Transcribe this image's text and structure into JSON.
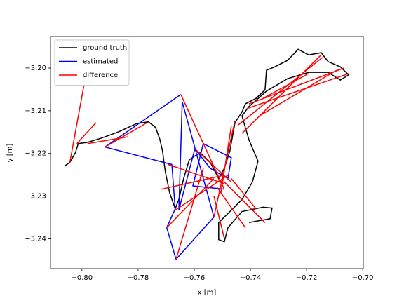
{
  "chart_data": {
    "type": "line",
    "xlabel": "x [m]",
    "ylabel": "y [m]",
    "xlim": [
      -0.8112,
      -0.6998
    ],
    "ylim": [
      -3.247,
      -3.1926
    ],
    "xticks": [
      {
        "value": -0.8,
        "label": "−0.80"
      },
      {
        "value": -0.78,
        "label": "−0.78"
      },
      {
        "value": -0.76,
        "label": "−0.76"
      },
      {
        "value": -0.74,
        "label": "−0.74"
      },
      {
        "value": -0.72,
        "label": "−0.72"
      },
      {
        "value": -0.7,
        "label": "−0.70"
      }
    ],
    "yticks": [
      {
        "value": -3.2,
        "label": "−3.20"
      },
      {
        "value": -3.21,
        "label": "−3.21"
      },
      {
        "value": -3.22,
        "label": "−3.22"
      },
      {
        "value": -3.23,
        "label": "−3.23"
      },
      {
        "value": -3.24,
        "label": "−3.24"
      }
    ],
    "legend": "upper left",
    "series": [
      {
        "name": "ground truth",
        "color": "#000000",
        "x": [
          -0.8063,
          -0.8043,
          -0.8023,
          -0.8013,
          -0.798,
          -0.793,
          -0.7868,
          -0.7805,
          -0.7763,
          -0.7738,
          -0.7723,
          -0.7713,
          -0.7703,
          -0.7688,
          -0.7668,
          -0.7655,
          -0.7638,
          -0.7618,
          -0.758,
          -0.7543,
          -0.7513,
          -0.7493,
          -0.7473,
          -0.7455,
          -0.743,
          -0.7418,
          -0.738,
          -0.7348,
          -0.7343,
          -0.7313,
          -0.7268,
          -0.723,
          -0.7193,
          -0.7148,
          -0.7123,
          -0.708,
          -0.705,
          -0.708,
          -0.7123,
          -0.7193,
          -0.7268,
          -0.7343,
          -0.7405,
          -0.743,
          -0.7405,
          -0.7373,
          -0.7393,
          -0.743,
          -0.7468,
          -0.7513,
          -0.7513,
          -0.7493,
          -0.748,
          -0.743,
          -0.7355,
          -0.7323,
          -0.733,
          -0.7405
        ],
        "y": [
          -3.223,
          -3.2221,
          -3.2198,
          -3.2177,
          -3.2174,
          -3.2164,
          -3.2149,
          -3.213,
          -3.2126,
          -3.2139,
          -3.2166,
          -3.2194,
          -3.2243,
          -3.2292,
          -3.233,
          -3.2308,
          -3.2259,
          -3.2215,
          -3.2198,
          -3.2221,
          -3.2259,
          -3.2235,
          -3.2194,
          -3.2128,
          -3.2103,
          -3.2084,
          -3.2071,
          -3.2051,
          -3.2005,
          -3.1997,
          -3.1982,
          -3.1956,
          -3.1969,
          -3.1964,
          -3.1985,
          -3.1997,
          -3.2016,
          -3.2028,
          -3.201,
          -3.201,
          -3.2025,
          -3.2054,
          -3.209,
          -3.2112,
          -3.2169,
          -3.2218,
          -3.2267,
          -3.2308,
          -3.2333,
          -3.2362,
          -3.2402,
          -3.2407,
          -3.2374,
          -3.2336,
          -3.2326,
          -3.2328,
          -3.2353,
          -3.2362
        ]
      },
      {
        "name": "estimated",
        "color": "#0000ff",
        "x": [
          -0.7648,
          -0.7918,
          -0.768,
          -0.7668,
          -0.7698,
          -0.7665,
          -0.753,
          -0.7643,
          -0.7655,
          -0.7598,
          -0.7543,
          -0.748,
          -0.7468,
          -0.7568,
          -0.7605,
          -0.7493
        ],
        "y": [
          -3.2062,
          -3.2185,
          -3.2226,
          -3.233,
          -3.2374,
          -3.2448,
          -3.2349,
          -3.2079,
          -3.2333,
          -3.2189,
          -3.2235,
          -3.2259,
          -3.221,
          -3.2177,
          -3.2276,
          -3.2284
        ]
      },
      {
        "name": "difference",
        "color": "#ff0000",
        "x": [
          -0.7993,
          -0.8043,
          null,
          -0.795,
          -0.8018,
          null,
          -0.7835,
          -0.798,
          null,
          -0.7918,
          -0.7768,
          null,
          -0.7648,
          -0.7493,
          null,
          -0.7693,
          -0.7493,
          null,
          -0.7668,
          -0.748,
          null,
          -0.7698,
          -0.753,
          null,
          -0.7665,
          -0.7568,
          null,
          -0.753,
          -0.7455,
          null,
          -0.7505,
          -0.7468,
          null,
          -0.7493,
          -0.7348,
          null,
          -0.7518,
          -0.7418,
          null,
          -0.753,
          -0.7493,
          null,
          -0.7468,
          -0.738,
          null,
          -0.7598,
          -0.7468,
          null,
          -0.7405,
          -0.7068,
          null,
          -0.743,
          -0.7148,
          null,
          -0.7413,
          -0.705,
          null,
          -0.7368,
          -0.7093,
          null,
          -0.7355,
          -0.7193,
          null,
          -0.7443,
          -0.7143,
          null,
          -0.7718,
          -0.7493
        ],
        "y": [
          -3.2041,
          -3.2221,
          null,
          -3.2128,
          -3.2177,
          null,
          -3.2161,
          -3.2177,
          null,
          -3.2185,
          -3.2128,
          null,
          -3.2062,
          -3.2284,
          null,
          -3.2226,
          -3.2271,
          null,
          -3.2333,
          -3.2251,
          null,
          -3.2374,
          -3.2259,
          null,
          -3.2448,
          -3.2235,
          null,
          -3.2349,
          -3.2123,
          null,
          -3.2292,
          -3.2136,
          null,
          -3.2267,
          -3.2362,
          null,
          -3.228,
          -3.2374,
          null,
          -3.23,
          -3.2399,
          null,
          -3.2259,
          -3.233,
          null,
          -3.2189,
          -3.2267,
          null,
          -3.2084,
          -3.2,
          null,
          -3.2153,
          -3.1969,
          null,
          -3.2095,
          -3.2013,
          null,
          -3.2112,
          -3.2005,
          null,
          -3.2071,
          -3.2013,
          null,
          -3.2133,
          -3.1975,
          null,
          -3.2284,
          -3.2251
        ]
      }
    ]
  }
}
